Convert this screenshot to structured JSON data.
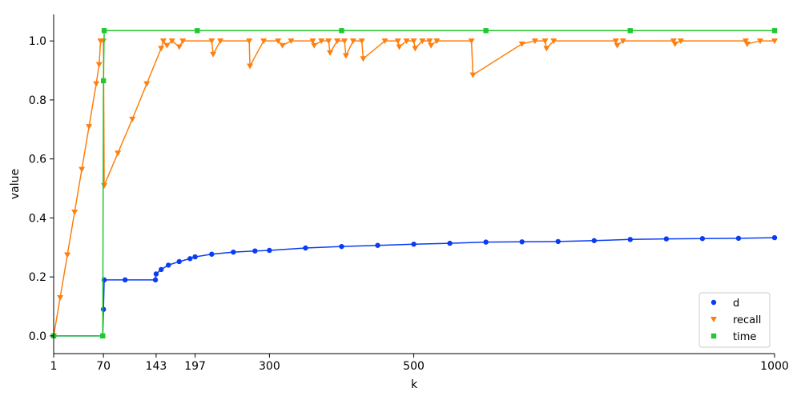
{
  "chart_data": {
    "type": "scatter",
    "title": "",
    "xlabel": "k",
    "ylabel": "value",
    "xlim": [
      1,
      1000
    ],
    "ylim": [
      -0.06,
      1.09
    ],
    "x_ticks": [
      1,
      70,
      143,
      197,
      300,
      500,
      1000
    ],
    "y_ticks": [
      0.0,
      0.2,
      0.4,
      0.6,
      0.8,
      1.0
    ],
    "y_tick_labels": [
      "0.0",
      "0.2",
      "0.4",
      "0.6",
      "0.8",
      "1.0"
    ],
    "grid": false,
    "legend_position": "bottom-right",
    "series": [
      {
        "name": "d",
        "color": "#0a3cf5",
        "marker": "circle",
        "points": [
          [
            1,
            0.0
          ],
          [
            69,
            0.0
          ],
          [
            70,
            0.09
          ],
          [
            71,
            0.19
          ],
          [
            100,
            0.19
          ],
          [
            142,
            0.19
          ],
          [
            143,
            0.21
          ],
          [
            150,
            0.225
          ],
          [
            160,
            0.24
          ],
          [
            175,
            0.252
          ],
          [
            190,
            0.262
          ],
          [
            197,
            0.268
          ],
          [
            220,
            0.277
          ],
          [
            250,
            0.284
          ],
          [
            280,
            0.288
          ],
          [
            300,
            0.29
          ],
          [
            350,
            0.298
          ],
          [
            400,
            0.303
          ],
          [
            450,
            0.307
          ],
          [
            500,
            0.311
          ],
          [
            550,
            0.314
          ],
          [
            600,
            0.318
          ],
          [
            650,
            0.319
          ],
          [
            700,
            0.32
          ],
          [
            750,
            0.323
          ],
          [
            800,
            0.327
          ],
          [
            850,
            0.329
          ],
          [
            900,
            0.33
          ],
          [
            950,
            0.331
          ],
          [
            1000,
            0.333
          ]
        ]
      },
      {
        "name": "recall",
        "color": "#ff7f0e",
        "marker": "triangle-down",
        "points": [
          [
            1,
            0.0
          ],
          [
            10,
            0.13
          ],
          [
            20,
            0.275
          ],
          [
            30,
            0.42
          ],
          [
            40,
            0.565
          ],
          [
            50,
            0.71
          ],
          [
            60,
            0.855
          ],
          [
            64,
            0.92
          ],
          [
            66,
            1.0
          ],
          [
            70,
            1.0
          ],
          [
            71,
            0.51
          ],
          [
            90,
            0.62
          ],
          [
            110,
            0.735
          ],
          [
            130,
            0.855
          ],
          [
            150,
            0.975
          ],
          [
            153,
            1.0
          ],
          [
            158,
            0.985
          ],
          [
            165,
            1.0
          ],
          [
            175,
            0.98
          ],
          [
            180,
            1.0
          ],
          [
            220,
            1.0
          ],
          [
            222,
            0.955
          ],
          [
            232,
            1.0
          ],
          [
            272,
            1.0
          ],
          [
            273,
            0.915
          ],
          [
            292,
            1.0
          ],
          [
            312,
            1.0
          ],
          [
            318,
            0.985
          ],
          [
            330,
            1.0
          ],
          [
            360,
            1.0
          ],
          [
            362,
            0.985
          ],
          [
            372,
            1.0
          ],
          [
            382,
            1.0
          ],
          [
            384,
            0.96
          ],
          [
            394,
            1.0
          ],
          [
            404,
            1.0
          ],
          [
            406,
            0.95
          ],
          [
            416,
            1.0
          ],
          [
            428,
            1.0
          ],
          [
            430,
            0.94
          ],
          [
            460,
            1.0
          ],
          [
            478,
            1.0
          ],
          [
            480,
            0.98
          ],
          [
            490,
            1.0
          ],
          [
            500,
            1.0
          ],
          [
            502,
            0.975
          ],
          [
            512,
            1.0
          ],
          [
            522,
            1.0
          ],
          [
            524,
            0.985
          ],
          [
            532,
            1.0
          ],
          [
            580,
            1.0
          ],
          [
            582,
            0.885
          ],
          [
            650,
            0.99
          ],
          [
            668,
            1.0
          ],
          [
            682,
            1.0
          ],
          [
            684,
            0.975
          ],
          [
            694,
            1.0
          ],
          [
            780,
            1.0
          ],
          [
            782,
            0.985
          ],
          [
            790,
            1.0
          ],
          [
            860,
            1.0
          ],
          [
            862,
            0.99
          ],
          [
            870,
            1.0
          ],
          [
            960,
            1.0
          ],
          [
            962,
            0.99
          ],
          [
            980,
            1.0
          ],
          [
            1000,
            1.0
          ]
        ]
      },
      {
        "name": "time",
        "color": "#22c832",
        "marker": "square",
        "points": [
          [
            1,
            0.0
          ],
          [
            69,
            0.0
          ],
          [
            70,
            0.865
          ],
          [
            71,
            1.035
          ],
          [
            200,
            1.035
          ],
          [
            400,
            1.035
          ],
          [
            600,
            1.035
          ],
          [
            800,
            1.035
          ],
          [
            1000,
            1.035
          ]
        ]
      }
    ]
  }
}
